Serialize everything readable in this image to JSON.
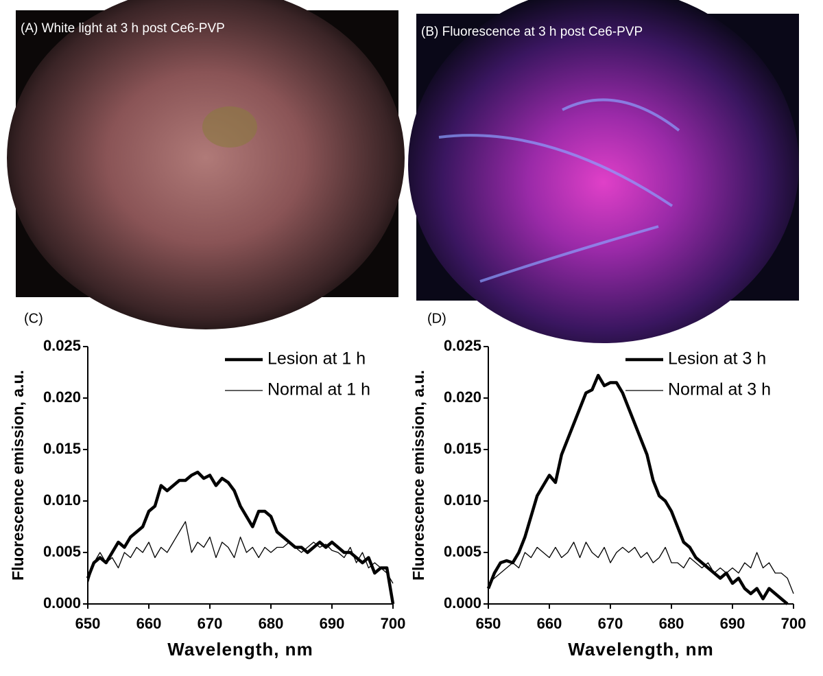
{
  "images": [
    {
      "label": "(A) White light at 3 h post Ce6-PVP"
    },
    {
      "label": "(B) Fluorescence at 3 h post Ce6-PVP"
    }
  ],
  "chart_data": [
    {
      "type": "line",
      "panel_label": "(C)",
      "x_label": "Wavelength, nm",
      "y_label": "Fluorescence emission, a.u.",
      "x": [
        650,
        651,
        652,
        653,
        654,
        655,
        656,
        657,
        658,
        659,
        660,
        661,
        662,
        663,
        664,
        665,
        666,
        667,
        668,
        669,
        670,
        671,
        672,
        673,
        674,
        675,
        676,
        677,
        678,
        679,
        680,
        681,
        682,
        683,
        684,
        685,
        686,
        687,
        688,
        689,
        690,
        691,
        692,
        693,
        694,
        695,
        696,
        697,
        698,
        699,
        700
      ],
      "xlim": [
        650,
        700
      ],
      "xticks": [
        650,
        660,
        670,
        680,
        690,
        700
      ],
      "ylim": [
        0,
        0.025
      ],
      "yticks": [
        {
          "value": 0,
          "label": "0.000"
        },
        {
          "value": 0.005,
          "label": "0.005"
        },
        {
          "value": 0.01,
          "label": "0.010"
        },
        {
          "value": 0.015,
          "label": "0.015"
        },
        {
          "value": 0.02,
          "label": "0.020"
        },
        {
          "value": 0.025,
          "label": "0.025"
        }
      ],
      "legend": "upper right",
      "series": [
        {
          "name": "Lesion at 1 h",
          "color": "#000000",
          "values": [
            0.0025,
            0.004,
            0.0045,
            0.004,
            0.005,
            0.006,
            0.0055,
            0.0065,
            0.007,
            0.0075,
            0.009,
            0.0095,
            0.0115,
            0.011,
            0.0115,
            0.012,
            0.012,
            0.0125,
            0.0128,
            0.0122,
            0.0125,
            0.0115,
            0.0122,
            0.0118,
            0.011,
            0.0095,
            0.0085,
            0.0075,
            0.009,
            0.009,
            0.0085,
            0.007,
            0.0065,
            0.006,
            0.0055,
            0.0055,
            0.005,
            0.0055,
            0.006,
            0.0055,
            0.006,
            0.0055,
            0.005,
            0.005,
            0.0045,
            0.004,
            0.0045,
            0.003,
            0.0035,
            0.0035,
            0.0
          ]
        },
        {
          "name": "Normal at 1 h",
          "color": "#000000",
          "values": [
            0.002,
            0.004,
            0.005,
            0.004,
            0.0045,
            0.0035,
            0.005,
            0.0045,
            0.0055,
            0.005,
            0.006,
            0.0045,
            0.0055,
            0.005,
            0.006,
            0.007,
            0.008,
            0.005,
            0.006,
            0.0055,
            0.0065,
            0.0045,
            0.006,
            0.0055,
            0.0045,
            0.0065,
            0.005,
            0.0055,
            0.0045,
            0.0055,
            0.005,
            0.0055,
            0.0055,
            0.006,
            0.0055,
            0.005,
            0.0055,
            0.006,
            0.0055,
            0.0058,
            0.0052,
            0.005,
            0.0045,
            0.0055,
            0.004,
            0.005,
            0.0035,
            0.004,
            0.0035,
            0.003,
            0.002
          ]
        }
      ]
    },
    {
      "type": "line",
      "panel_label": "(D)",
      "x_label": "Wavelength, nm",
      "y_label": "Fluorescence emission, a.u.",
      "x": [
        650,
        651,
        652,
        653,
        654,
        655,
        656,
        657,
        658,
        659,
        660,
        661,
        662,
        663,
        664,
        665,
        666,
        667,
        668,
        669,
        670,
        671,
        672,
        673,
        674,
        675,
        676,
        677,
        678,
        679,
        680,
        681,
        682,
        683,
        684,
        685,
        686,
        687,
        688,
        689,
        690,
        691,
        692,
        693,
        694,
        695,
        696,
        697,
        698,
        699,
        700
      ],
      "xlim": [
        650,
        700
      ],
      "xticks": [
        650,
        660,
        670,
        680,
        690,
        700
      ],
      "ylim": [
        0,
        0.025
      ],
      "yticks": [
        {
          "value": 0,
          "label": "0.000"
        },
        {
          "value": 0.005,
          "label": "0.005"
        },
        {
          "value": 0.01,
          "label": "0.010"
        },
        {
          "value": 0.015,
          "label": "0.015"
        },
        {
          "value": 0.02,
          "label": "0.020"
        },
        {
          "value": 0.025,
          "label": "0.025"
        }
      ],
      "legend": "upper right",
      "series": [
        {
          "name": "Lesion at 3 h",
          "color": "#000000",
          "values": [
            0.0015,
            0.003,
            0.004,
            0.0042,
            0.004,
            0.005,
            0.0065,
            0.0085,
            0.0105,
            0.0115,
            0.0125,
            0.0118,
            0.0145,
            0.016,
            0.0175,
            0.019,
            0.0205,
            0.0208,
            0.0222,
            0.0212,
            0.0215,
            0.0215,
            0.0205,
            0.019,
            0.0175,
            0.016,
            0.0145,
            0.012,
            0.0105,
            0.01,
            0.009,
            0.0075,
            0.006,
            0.0055,
            0.0045,
            0.004,
            0.0035,
            0.003,
            0.0025,
            0.003,
            0.002,
            0.0025,
            0.0015,
            0.001,
            0.0015,
            0.0005,
            0.0015,
            0.001,
            0.0005,
            0.0,
            null
          ]
        },
        {
          "name": "Normal at 3 h",
          "color": "#000000",
          "values": [
            0.002,
            0.0025,
            0.003,
            0.0035,
            0.004,
            0.0035,
            0.005,
            0.0045,
            0.0055,
            0.005,
            0.0045,
            0.0055,
            0.0045,
            0.005,
            0.006,
            0.0045,
            0.006,
            0.005,
            0.0045,
            0.0055,
            0.004,
            0.005,
            0.0055,
            0.005,
            0.0055,
            0.0045,
            0.005,
            0.004,
            0.0045,
            0.0055,
            0.004,
            0.004,
            0.0035,
            0.0045,
            0.004,
            0.0035,
            0.004,
            0.003,
            0.0035,
            0.003,
            0.0035,
            0.003,
            0.004,
            0.0035,
            0.005,
            0.0035,
            0.004,
            0.003,
            0.003,
            0.0025,
            0.001
          ]
        }
      ]
    }
  ]
}
